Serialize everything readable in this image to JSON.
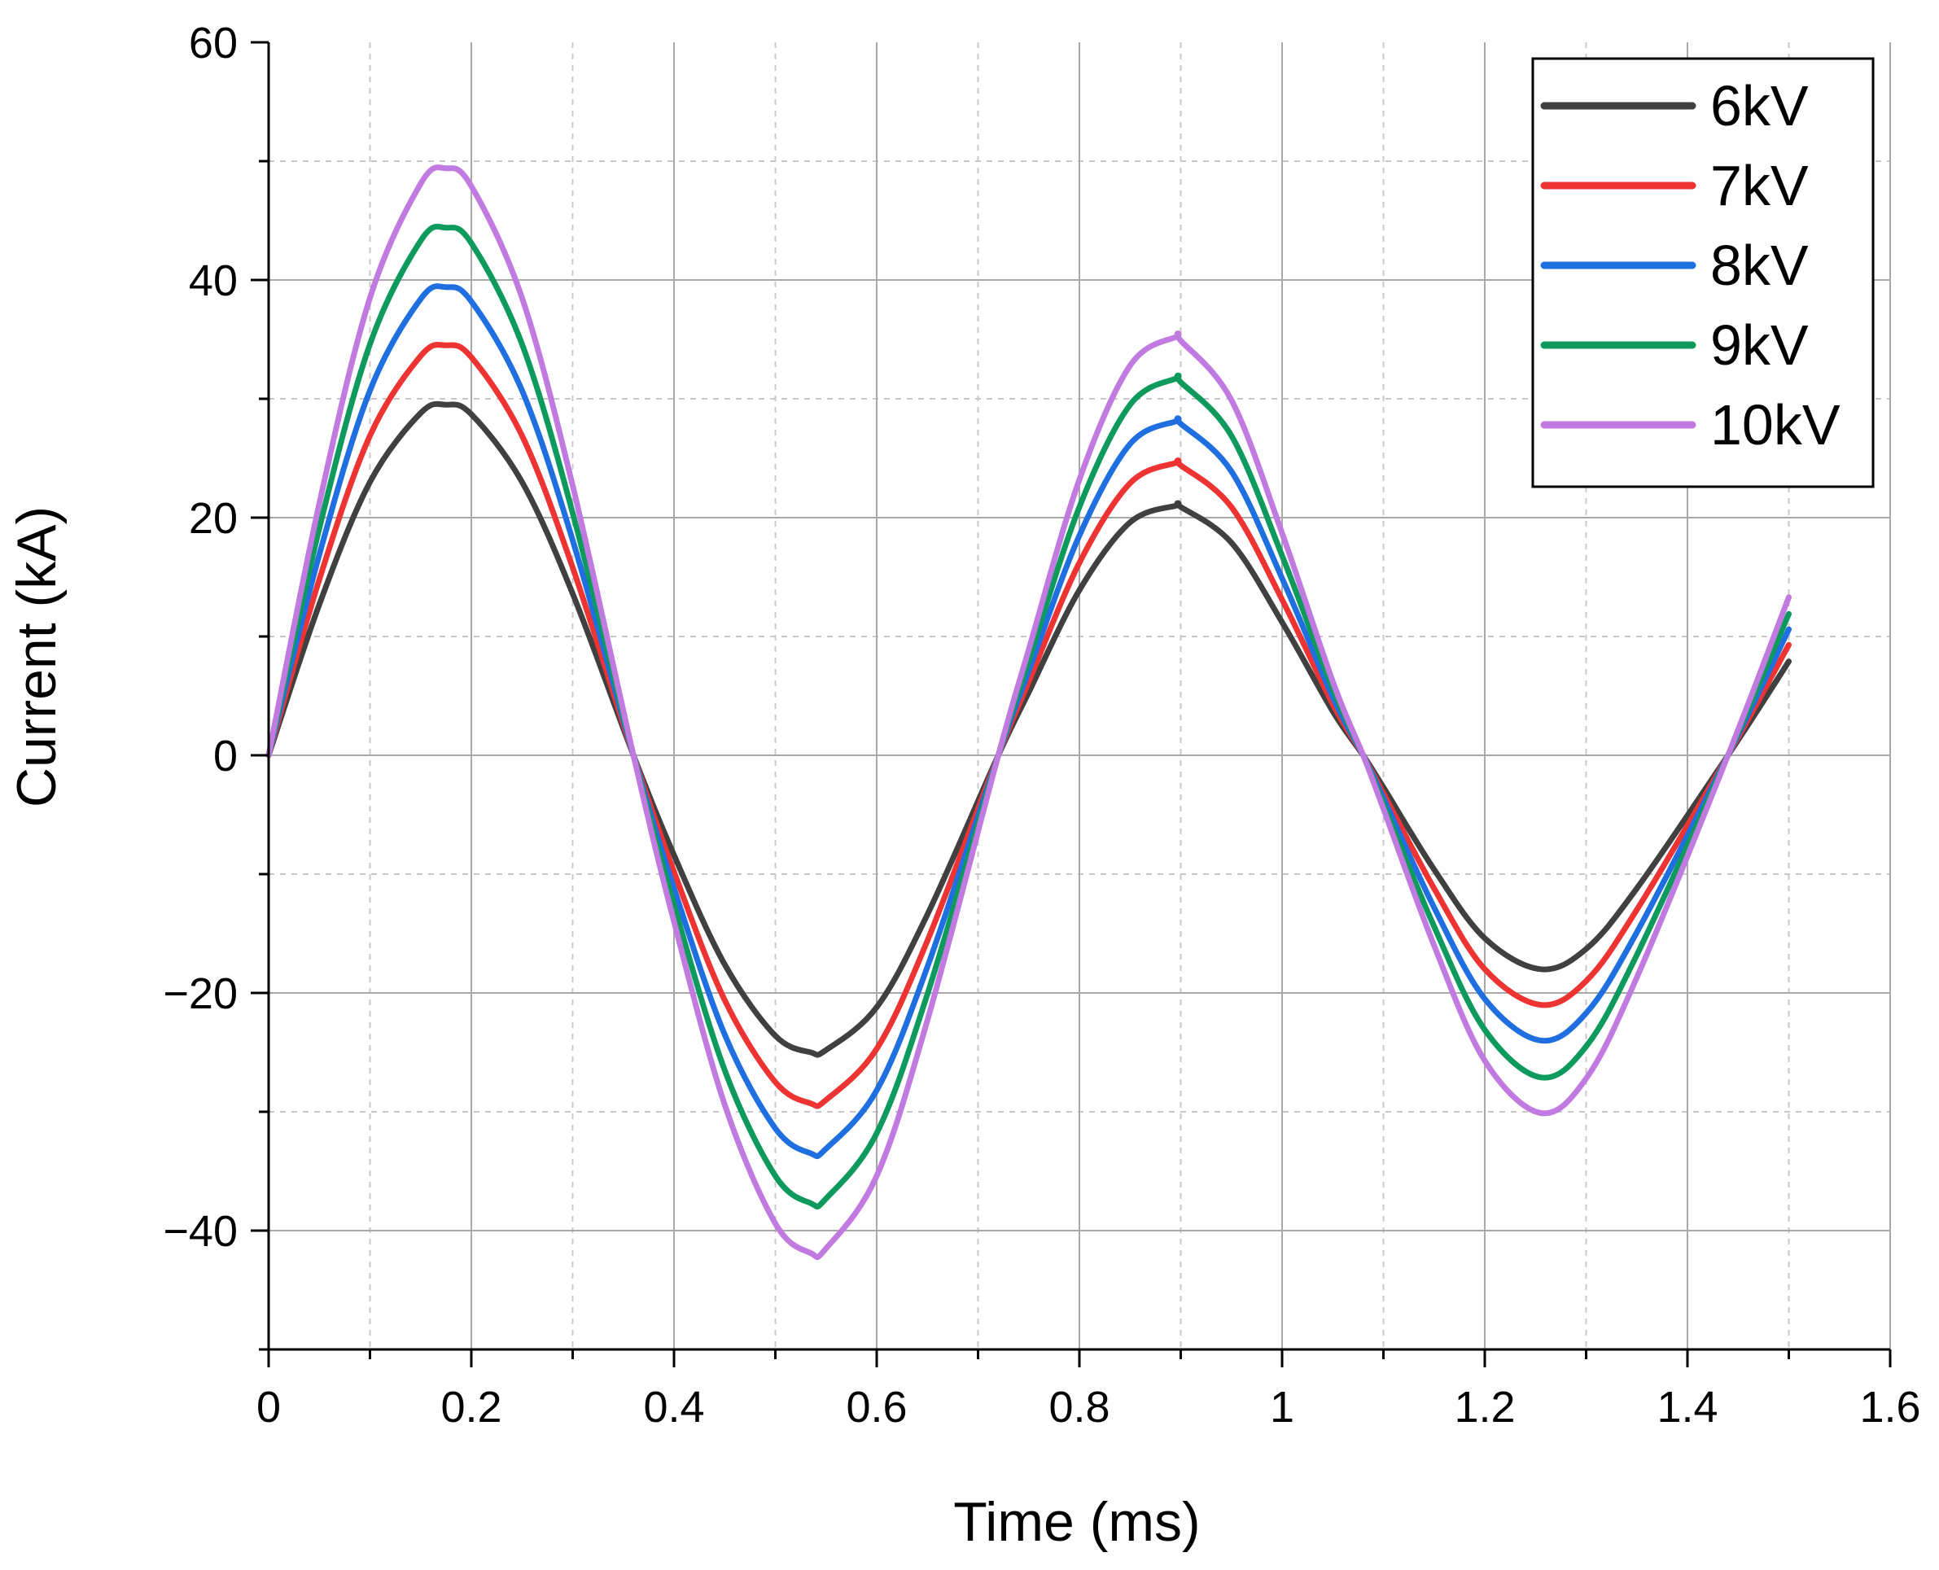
{
  "chart_data": {
    "type": "line",
    "title": "",
    "xlabel": "Time (ms)",
    "ylabel": "Current (kA)",
    "xlim": [
      0,
      1.6
    ],
    "ylim": [
      -50,
      60
    ],
    "x_ticks": [
      0,
      0.2,
      0.4,
      0.6,
      0.8,
      1,
      1.2,
      1.4,
      1.6
    ],
    "x_tick_labels": [
      "0",
      "0.2",
      "0.4",
      "0.6",
      "0.8",
      "1",
      "1.2",
      "1.4",
      "1.6"
    ],
    "y_ticks": [
      -40,
      -20,
      0,
      20,
      40,
      60
    ],
    "y_tick_labels": [
      "−40",
      "−20",
      "0",
      "20",
      "40",
      "60"
    ],
    "grid": true,
    "legend_position": "top-right",
    "x": [
      0,
      0.05,
      0.1,
      0.15,
      0.175,
      0.2,
      0.25,
      0.3,
      0.36,
      0.4,
      0.45,
      0.5,
      0.535,
      0.55,
      0.6,
      0.65,
      0.72,
      0.75,
      0.8,
      0.85,
      0.895,
      0.9,
      0.95,
      1.0,
      1.05,
      1.08,
      1.1,
      1.15,
      1.2,
      1.255,
      1.3,
      1.35,
      1.44,
      1.5
    ],
    "series": [
      {
        "name": "6kV",
        "color": "#404040",
        "values": [
          0,
          12.7,
          23.0,
          28.8,
          29.5,
          28.7,
          23.0,
          13.6,
          0,
          -8.4,
          -17.6,
          -23.6,
          -25.0,
          -24.8,
          -21.2,
          -13.4,
          0,
          5.3,
          13.9,
          19.6,
          21.0,
          20.9,
          17.9,
          11.2,
          3.7,
          0,
          -2.7,
          -9.6,
          -15.4,
          -18.0,
          -16.3,
          -11.2,
          0,
          7.9
        ]
      },
      {
        "name": "7kV",
        "color": "#ee3333",
        "values": [
          0,
          14.8,
          26.9,
          33.6,
          34.5,
          33.5,
          26.9,
          15.8,
          0,
          -9.8,
          -20.6,
          -27.5,
          -29.3,
          -29.0,
          -24.7,
          -15.6,
          0,
          6.2,
          16.2,
          22.9,
          24.6,
          24.4,
          20.9,
          13.1,
          4.3,
          0,
          -3.2,
          -11.2,
          -18.0,
          -21.0,
          -19.0,
          -13.0,
          0,
          9.3
        ]
      },
      {
        "name": "8kV",
        "color": "#1f6fe0",
        "values": [
          0,
          16.9,
          30.7,
          38.4,
          39.4,
          38.2,
          30.7,
          18.1,
          0,
          -11.2,
          -23.5,
          -31.4,
          -33.5,
          -33.1,
          -28.2,
          -17.8,
          0,
          7.1,
          18.5,
          26.2,
          28.1,
          27.9,
          23.9,
          14.9,
          4.9,
          0,
          -3.6,
          -12.8,
          -20.5,
          -24.0,
          -21.7,
          -14.9,
          0,
          10.6
        ]
      },
      {
        "name": "9kV",
        "color": "#0e9a5c",
        "values": [
          0,
          19.1,
          34.6,
          43.3,
          44.4,
          43.1,
          34.6,
          20.4,
          0,
          -12.6,
          -26.5,
          -35.4,
          -37.7,
          -37.3,
          -31.8,
          -20.1,
          0,
          8.0,
          20.9,
          29.5,
          31.7,
          31.4,
          26.9,
          16.8,
          5.6,
          0,
          -4.1,
          -14.4,
          -23.1,
          -27.1,
          -24.5,
          -16.8,
          0,
          11.9
        ]
      },
      {
        "name": "10kV",
        "color": "#c07ae0",
        "values": [
          0,
          21.2,
          38.5,
          48.1,
          49.4,
          47.9,
          38.5,
          22.7,
          0,
          -14.0,
          -29.4,
          -39.4,
          -41.9,
          -41.5,
          -35.4,
          -22.3,
          0,
          8.9,
          23.2,
          32.8,
          35.2,
          34.9,
          29.9,
          18.7,
          6.2,
          0,
          -4.5,
          -16.0,
          -25.7,
          -30.1,
          -27.2,
          -18.7,
          0,
          13.3
        ]
      }
    ]
  }
}
